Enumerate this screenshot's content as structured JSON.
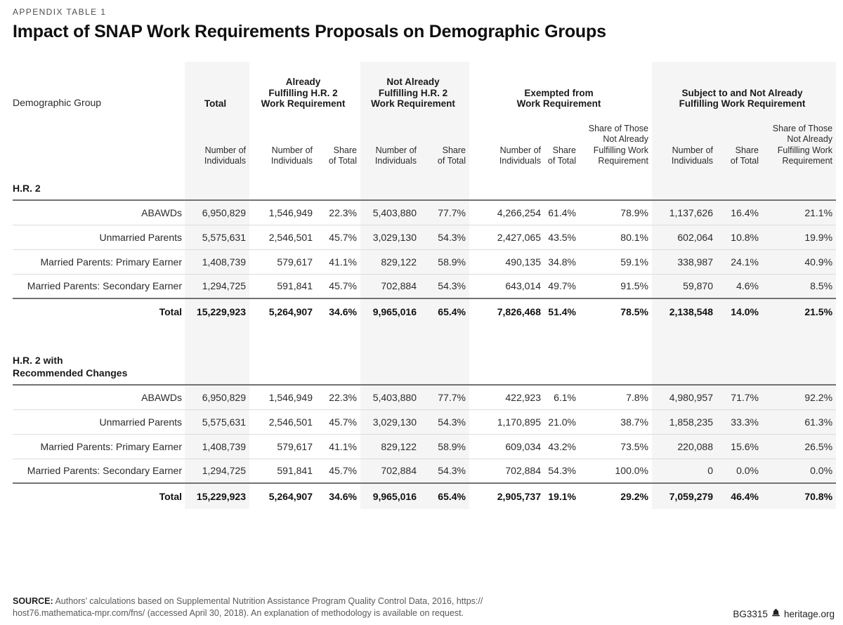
{
  "page": {
    "kicker": "APPENDIX TABLE 1",
    "title": "Impact of SNAP Work Requirements Proposals on Demographic Groups"
  },
  "table": {
    "row_label_header": "Demographic Group",
    "col_groups": [
      {
        "label": "Total",
        "lines": [
          "Total"
        ],
        "span": 1,
        "shaded": true
      },
      {
        "label": "Already Fulfilling H.R. 2 Work Requirement",
        "lines": [
          "Already",
          "Fulfilling H.R. 2",
          "Work Requirement"
        ],
        "span": 2,
        "shaded": false
      },
      {
        "label": "Not Already Fulfilling H.R. 2 Work Requirement",
        "lines": [
          "Not Already",
          "Fulfilling H.R. 2",
          "Work Requirement"
        ],
        "span": 2,
        "shaded": true
      },
      {
        "label": "Exempted from Work Requirement",
        "lines": [
          "Exempted from",
          "Work Requirement"
        ],
        "span": 3,
        "shaded": false
      },
      {
        "label": "Subject to and Not Already Fulfilling Work Requirement",
        "lines": [
          "Subject to and Not Already",
          "Fulfilling Work Requirement"
        ],
        "span": 3,
        "shaded": true
      }
    ],
    "sub_headers": [
      {
        "label": "Number of Individuals",
        "lines": [
          "Number of",
          "Individuals"
        ]
      },
      {
        "label": "Number of Individuals",
        "lines": [
          "Number of",
          "Individuals"
        ]
      },
      {
        "label": "Share of Total",
        "lines": [
          "Share",
          "of Total"
        ]
      },
      {
        "label": "Number of Individuals",
        "lines": [
          "Number of",
          "Individuals"
        ]
      },
      {
        "label": "Share of Total",
        "lines": [
          "Share",
          "of Total"
        ]
      },
      {
        "label": "Number of Individuals",
        "lines": [
          "Number of",
          "Individuals"
        ]
      },
      {
        "label": "Share of Total",
        "lines": [
          "Share",
          "of Total"
        ]
      },
      {
        "label": "Share of Those Not Already Fulfilling Work Requirement",
        "lines": [
          "Share of Those",
          "Not Already",
          "Fulfilling Work",
          "Requirement"
        ]
      },
      {
        "label": "Number of Individuals",
        "lines": [
          "Number of",
          "Individuals"
        ]
      },
      {
        "label": "Share of Total",
        "lines": [
          "Share",
          "of Total"
        ]
      },
      {
        "label": "Share of Those Not Already Fulfilling Work Requirement",
        "lines": [
          "Share of Those",
          "Not Already",
          "Fulfilling Work",
          "Requirement"
        ]
      }
    ],
    "sections": [
      {
        "heading": "H.R. 2",
        "heading_lines": [
          "H.R. 2"
        ],
        "rows": [
          {
            "label": "ABAWDs",
            "values": [
              "6,950,829",
              "1,546,949",
              "22.3%",
              "5,403,880",
              "77.7%",
              "4,266,254",
              "61.4%",
              "78.9%",
              "1,137,626",
              "16.4%",
              "21.1%"
            ]
          },
          {
            "label": "Unmarried Parents",
            "values": [
              "5,575,631",
              "2,546,501",
              "45.7%",
              "3,029,130",
              "54.3%",
              "2,427,065",
              "43.5%",
              "80.1%",
              "602,064",
              "10.8%",
              "19.9%"
            ]
          },
          {
            "label": "Married Parents: Primary Earner",
            "values": [
              "1,408,739",
              "579,617",
              "41.1%",
              "829,122",
              "58.9%",
              "490,135",
              "34.8%",
              "59.1%",
              "338,987",
              "24.1%",
              "40.9%"
            ]
          },
          {
            "label": "Married Parents: Secondary Earner",
            "values": [
              "1,294,725",
              "591,841",
              "45.7%",
              "702,884",
              "54.3%",
              "643,014",
              "49.7%",
              "91.5%",
              "59,870",
              "4.6%",
              "8.5%"
            ]
          }
        ],
        "total": {
          "label": "Total",
          "values": [
            "15,229,923",
            "5,264,907",
            "34.6%",
            "9,965,016",
            "65.4%",
            "7,826,468",
            "51.4%",
            "78.5%",
            "2,138,548",
            "14.0%",
            "21.5%"
          ]
        }
      },
      {
        "heading": "H.R. 2 with Recommended Changes",
        "heading_lines": [
          "H.R. 2 with",
          "Recommended Changes"
        ],
        "rows": [
          {
            "label": "ABAWDs",
            "values": [
              "6,950,829",
              "1,546,949",
              "22.3%",
              "5,403,880",
              "77.7%",
              "422,923",
              "6.1%",
              "7.8%",
              "4,980,957",
              "71.7%",
              "92.2%"
            ]
          },
          {
            "label": "Unmarried Parents",
            "values": [
              "5,575,631",
              "2,546,501",
              "45.7%",
              "3,029,130",
              "54.3%",
              "1,170,895",
              "21.0%",
              "38.7%",
              "1,858,235",
              "33.3%",
              "61.3%"
            ]
          },
          {
            "label": "Married Parents: Primary Earner",
            "values": [
              "1,408,739",
              "579,617",
              "41.1%",
              "829,122",
              "58.9%",
              "609,034",
              "43.2%",
              "73.5%",
              "220,088",
              "15.6%",
              "26.5%"
            ]
          },
          {
            "label": "Married Parents: Secondary Earner",
            "values": [
              "1,294,725",
              "591,841",
              "45.7%",
              "702,884",
              "54.3%",
              "702,884",
              "54.3%",
              "100.0%",
              "0",
              "0.0%",
              "0.0%"
            ]
          }
        ],
        "total": {
          "label": "Total",
          "values": [
            "15,229,923",
            "5,264,907",
            "34.6%",
            "9,965,016",
            "65.4%",
            "2,905,737",
            "19.1%",
            "29.2%",
            "7,059,279",
            "46.4%",
            "70.8%"
          ]
        }
      }
    ]
  },
  "footer": {
    "source_label": "SOURCE:",
    "source_line1_rest": " Authors’ calculations based on Supplemental Nutrition Assistance Program Quality Control Data, 2016, https://",
    "source_line2": "host76.mathematica-mpr.com/fns/ (accessed April 30, 2018). An explanation of methodology is available on request.",
    "report_id": "BG3315",
    "site": "heritage.org",
    "bell_icon": "liberty-bell-icon"
  },
  "colors": {
    "band": "#f5f5f5",
    "rule_dark": "#737373",
    "rule_light": "#dcdcdc",
    "title_text": "#0f0f0f",
    "body_text": "#2b2b2b",
    "muted_text": "#5a5a5a"
  }
}
